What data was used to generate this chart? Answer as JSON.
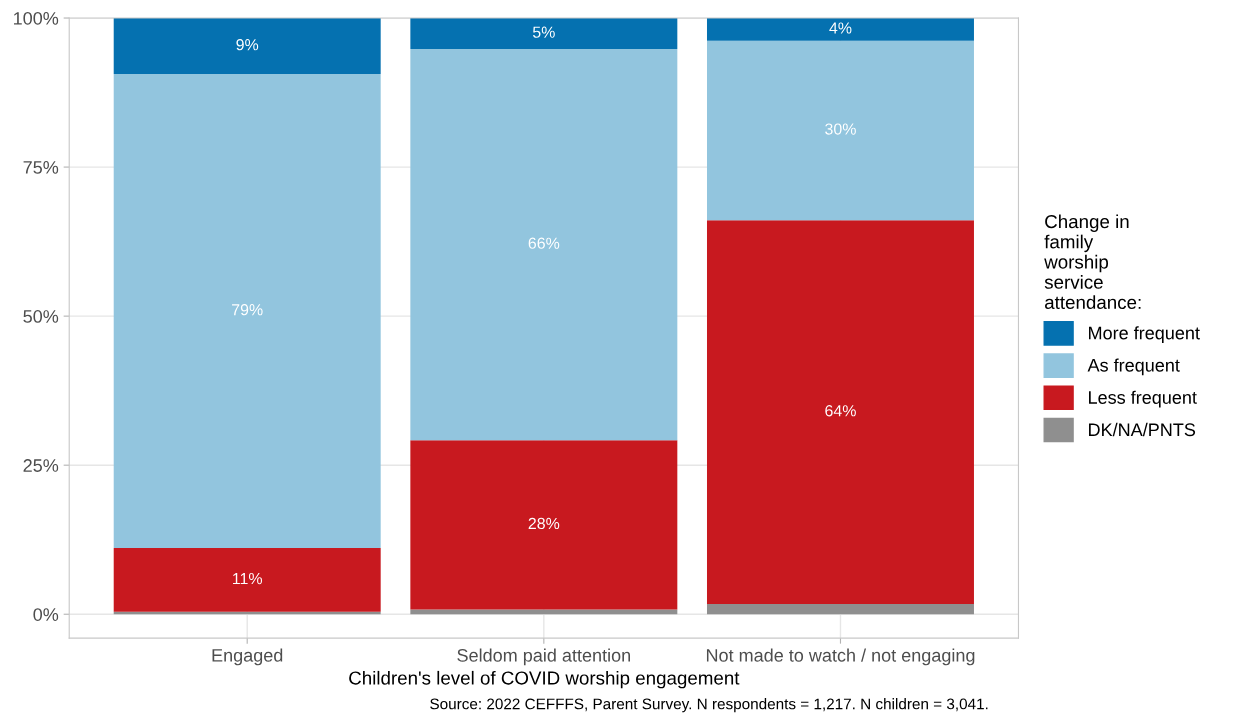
{
  "chart_data": {
    "type": "bar",
    "stacked": true,
    "categories": [
      "Engaged",
      "Seldom paid attention",
      "Not made to watch / not engaging"
    ],
    "xlabel": "Children's level of COVID worship engagement",
    "legend_title": "Change in\nfamily\nworship\nservice\nattendance:",
    "series": [
      {
        "name": "DK/NA/PNTS",
        "color": "#8f8f8f",
        "values": [
          0.4,
          0.8,
          1.7
        ],
        "value_labels": [
          null,
          null,
          null
        ]
      },
      {
        "name": "Less frequent",
        "color": "#c8191f",
        "values": [
          10.7,
          28.4,
          64.4
        ],
        "value_labels": [
          "11%",
          "28%",
          "64%"
        ]
      },
      {
        "name": "As frequent",
        "color": "#92c5de",
        "values": [
          79.5,
          65.6,
          30.1
        ],
        "value_labels": [
          "79%",
          "66%",
          "30%"
        ]
      },
      {
        "name": "More frequent",
        "color": "#0571b0",
        "values": [
          9.4,
          5.2,
          3.8
        ],
        "value_labels": [
          "9%",
          "5%",
          "4%"
        ]
      }
    ],
    "ylim": [
      -4,
      100
    ],
    "yticks": [
      {
        "value": 0,
        "label": "0%"
      },
      {
        "value": 25,
        "label": "25%"
      },
      {
        "value": 50,
        "label": "50%"
      },
      {
        "value": 75,
        "label": "75%"
      },
      {
        "value": 100,
        "label": "100%"
      }
    ],
    "grid": true,
    "legend": "right",
    "annotations": [
      "Source: 2022 CEFFFS, Parent Survey. N respondents = 1,217. N children = 3,041."
    ]
  }
}
